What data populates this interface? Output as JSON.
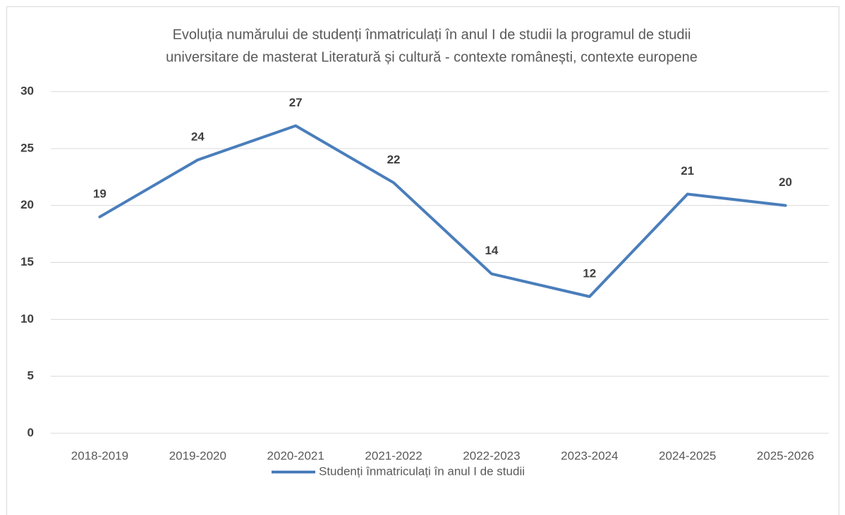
{
  "chart_data": {
    "type": "line",
    "title": [
      "Evoluția numărului de studenți înmatriculați în anul I de studii la programul de studii",
      "universitare de masterat Literatură și cultură - contexte românești, contexte europene"
    ],
    "categories": [
      "2018-2019",
      "2019-2020",
      "2020-2021",
      "2021-2022",
      "2022-2023",
      "2023-2024",
      "2024-2025",
      "2025-2026"
    ],
    "series": [
      {
        "name": "Studenți înmatriculați în anul I de studii",
        "color": "#4a7ebb",
        "values": [
          19,
          24,
          27,
          22,
          14,
          12,
          21,
          20
        ]
      }
    ],
    "ylim": [
      0,
      30
    ],
    "yticks": [
      0,
      5,
      10,
      15,
      20,
      25,
      30
    ],
    "grid": true,
    "legend": "bottom"
  }
}
